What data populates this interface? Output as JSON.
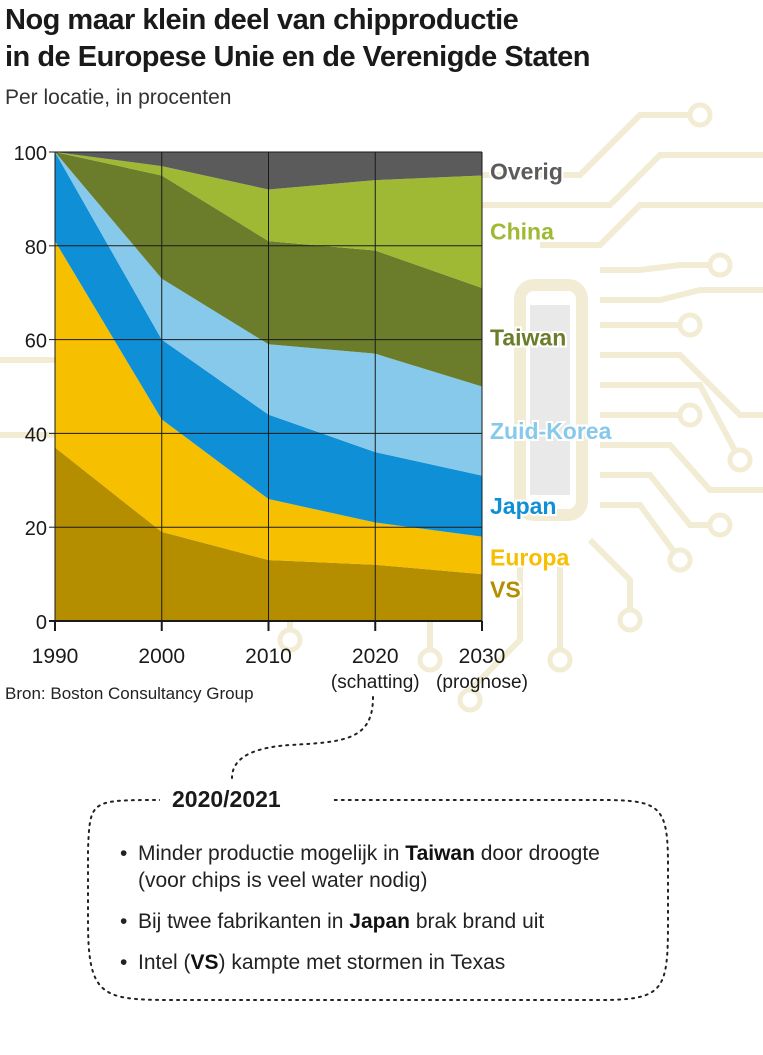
{
  "title_line1": "Nog maar klein deel van chipproductie",
  "title_line2": "in de Europese Unie en de Verenigde Staten",
  "subtitle": "Per locatie, in procenten",
  "source": "Bron: Boston Consultancy Group",
  "chart_data": {
    "type": "area",
    "stacked": true,
    "x": [
      1990,
      2000,
      2010,
      2020,
      2030
    ],
    "x_tick_labels": [
      "1990",
      "2000",
      "2010",
      "2020",
      "2030"
    ],
    "x_tick_sublabels": [
      "",
      "",
      "",
      "(schatting)",
      "(prognose)"
    ],
    "ylim": [
      0,
      100
    ],
    "y_ticks": [
      0,
      20,
      40,
      60,
      80,
      100
    ],
    "grid": true,
    "legend_placement": "right, labels at series",
    "series": [
      {
        "name": "VS",
        "color": "#b58e00",
        "values": [
          37,
          19,
          13,
          12,
          10
        ]
      },
      {
        "name": "Europa",
        "color": "#f6bf00",
        "values": [
          44,
          24,
          13,
          9,
          8
        ]
      },
      {
        "name": "Japan",
        "color": "#0e8fd6",
        "values": [
          19,
          17,
          18,
          15,
          13
        ]
      },
      {
        "name": "Zuid-Korea",
        "color": "#86c9eb",
        "values": [
          0,
          13,
          15,
          21,
          19
        ]
      },
      {
        "name": "Taiwan",
        "color": "#6b7d2a",
        "values": [
          0,
          22,
          22,
          22,
          21
        ]
      },
      {
        "name": "China",
        "color": "#9fb934",
        "values": [
          0,
          2,
          11,
          15,
          24
        ]
      },
      {
        "name": "Overig",
        "color": "#5b5b5b",
        "values": [
          0,
          3,
          8,
          6,
          5
        ]
      }
    ]
  },
  "note": {
    "heading": "2020/2021",
    "items": [
      {
        "pre": "Minder productie mogelijk in ",
        "bold": "Taiwan",
        "post": " door droogte (voor chips is veel water nodig)"
      },
      {
        "pre": "Bij twee fabrikanten in ",
        "bold": "Japan",
        "post": " brak brand uit"
      },
      {
        "pre": "Intel (",
        "bold": "VS",
        "post": ") kampte met stormen in Texas"
      }
    ]
  },
  "colors": {
    "gridline": "#1a1a1a",
    "background_circuit": "#f3ecd4",
    "background_chip": "#e9e9e9"
  }
}
